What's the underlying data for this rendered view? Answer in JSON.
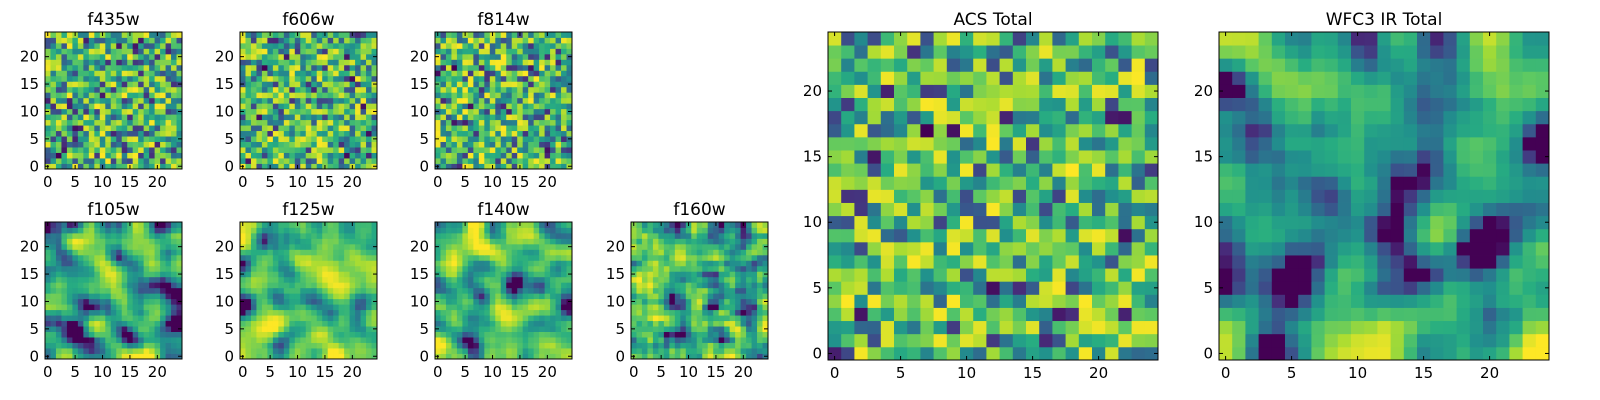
{
  "colormap": {
    "name": "viridis",
    "stops": [
      "#440154",
      "#472c7a",
      "#3b518b",
      "#2c718e",
      "#21908d",
      "#27ad81",
      "#5cc863",
      "#aadc32",
      "#fde725"
    ]
  },
  "chart_data": [
    {
      "type": "heatmap",
      "title": "f435w",
      "xlim": [
        0,
        24
      ],
      "ylim": [
        0,
        24
      ],
      "xticks": [
        "0",
        "5",
        "10",
        "15",
        "20"
      ],
      "yticks": [
        "0",
        "5",
        "10",
        "15",
        "20"
      ],
      "grid_size": 25,
      "seed": 435,
      "smooth": 0,
      "contrast": 1.0
    },
    {
      "type": "heatmap",
      "title": "f606w",
      "xlim": [
        0,
        24
      ],
      "ylim": [
        0,
        24
      ],
      "xticks": [
        "0",
        "5",
        "10",
        "15",
        "20"
      ],
      "yticks": [
        "0",
        "5",
        "10",
        "15",
        "20"
      ],
      "grid_size": 25,
      "seed": 606,
      "smooth": 0,
      "contrast": 1.0
    },
    {
      "type": "heatmap",
      "title": "f814w",
      "xlim": [
        0,
        24
      ],
      "ylim": [
        0,
        24
      ],
      "xticks": [
        "0",
        "5",
        "10",
        "15",
        "20"
      ],
      "yticks": [
        "0",
        "5",
        "10",
        "15",
        "20"
      ],
      "grid_size": 25,
      "seed": 814,
      "smooth": 0,
      "contrast": 1.0
    },
    {
      "type": "heatmap",
      "title": "f105w",
      "xlim": [
        0,
        24
      ],
      "ylim": [
        0,
        24
      ],
      "xticks": [
        "0",
        "5",
        "10",
        "15",
        "20"
      ],
      "yticks": [
        "0",
        "5",
        "10",
        "15",
        "20"
      ],
      "grid_size": 25,
      "seed": 105,
      "smooth": 2,
      "contrast": 1.5
    },
    {
      "type": "heatmap",
      "title": "f125w",
      "xlim": [
        0,
        24
      ],
      "ylim": [
        0,
        24
      ],
      "xticks": [
        "0",
        "5",
        "10",
        "15",
        "20"
      ],
      "yticks": [
        "0",
        "5",
        "10",
        "15",
        "20"
      ],
      "grid_size": 25,
      "seed": 125,
      "smooth": 2,
      "contrast": 1.5
    },
    {
      "type": "heatmap",
      "title": "f140w",
      "xlim": [
        0,
        24
      ],
      "ylim": [
        0,
        24
      ],
      "xticks": [
        "0",
        "5",
        "10",
        "15",
        "20"
      ],
      "yticks": [
        "0",
        "5",
        "10",
        "15",
        "20"
      ],
      "grid_size": 25,
      "seed": 140,
      "smooth": 2,
      "contrast": 1.4
    },
    {
      "type": "heatmap",
      "title": "f160w",
      "xlim": [
        0,
        24
      ],
      "ylim": [
        0,
        24
      ],
      "xticks": [
        "0",
        "5",
        "10",
        "15",
        "20"
      ],
      "yticks": [
        "0",
        "5",
        "10",
        "15",
        "20"
      ],
      "grid_size": 25,
      "seed": 160,
      "smooth": 1,
      "contrast": 1.3
    },
    {
      "type": "heatmap",
      "title": "ACS Total",
      "xlim": [
        0,
        24
      ],
      "ylim": [
        0,
        24
      ],
      "xticks": [
        "0",
        "5",
        "10",
        "15",
        "20"
      ],
      "yticks": [
        "0",
        "5",
        "10",
        "15",
        "20"
      ],
      "grid_size": 25,
      "seed": 7,
      "smooth": 0,
      "contrast": 1.0
    },
    {
      "type": "heatmap",
      "title": "WFC3 IR Total",
      "xlim": [
        0,
        24
      ],
      "ylim": [
        0,
        24
      ],
      "xticks": [
        "0",
        "5",
        "10",
        "15",
        "20"
      ],
      "yticks": [
        "0",
        "5",
        "10",
        "15",
        "20"
      ],
      "grid_size": 25,
      "seed": 31,
      "smooth": 2,
      "contrast": 1.5
    }
  ]
}
